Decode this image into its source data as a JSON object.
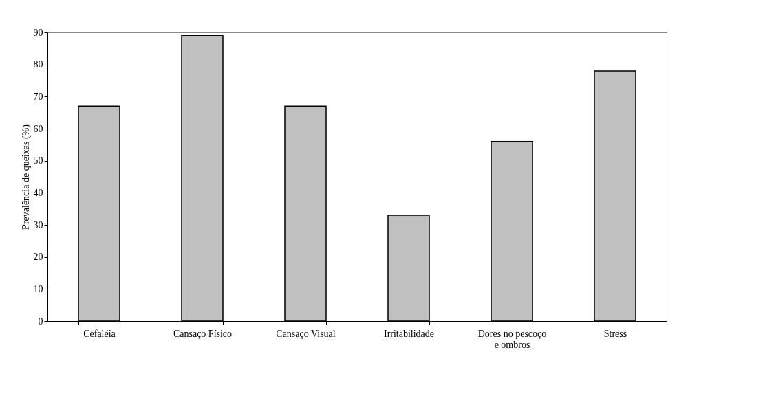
{
  "chart_data": {
    "type": "bar",
    "ylabel": "Prevalência de queixas (%)",
    "categories": [
      "Cefaléia",
      "Cansaço Físico",
      "Cansaço Visual",
      "Irritabilidade",
      "Dores no pescoço e ombros",
      "Stress"
    ],
    "values": [
      67,
      89,
      67,
      33,
      56,
      78
    ],
    "color": "#c0c0c0",
    "ylim": [
      0,
      90
    ],
    "yticks": [
      0,
      10,
      20,
      30,
      40,
      50,
      60,
      70,
      80,
      90
    ],
    "grid": false
  }
}
